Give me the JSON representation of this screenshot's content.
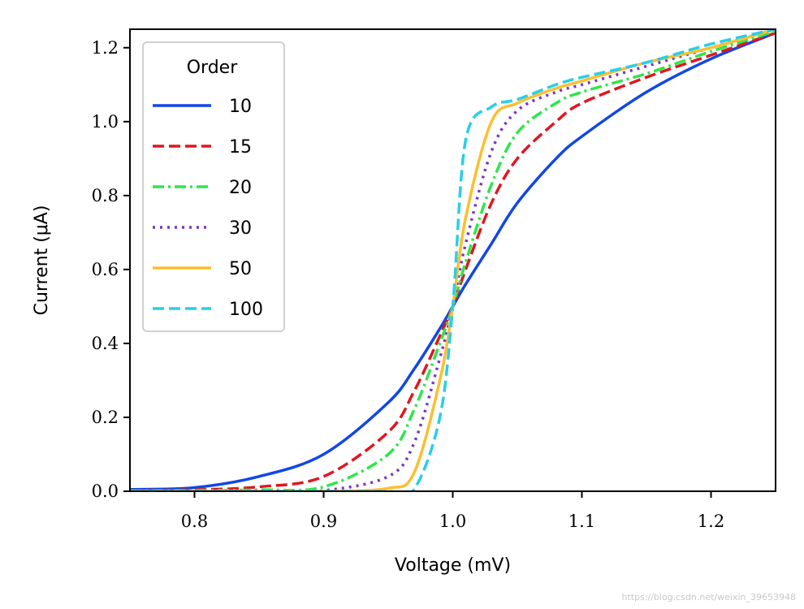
{
  "chart_data": {
    "type": "line",
    "title": "",
    "xlabel": "Voltage (mV)",
    "ylabel": "Current (μA)",
    "xlim": [
      0.75,
      1.25
    ],
    "ylim": [
      0.0,
      1.25
    ],
    "xticks": [
      0.8,
      0.9,
      1.0,
      1.1,
      1.2
    ],
    "xtick_labels": [
      "0.8",
      "0.9",
      "1.0",
      "1.1",
      "1.2"
    ],
    "yticks": [
      0.0,
      0.2,
      0.4,
      0.6,
      0.8,
      1.0,
      1.2
    ],
    "ytick_labels": [
      "0.0",
      "0.2",
      "0.4",
      "0.6",
      "0.8",
      "1.0",
      "1.2"
    ],
    "grid": false,
    "legend": {
      "title": "Order",
      "placement": "upper-left"
    },
    "x": [
      0.75,
      0.8,
      0.85,
      0.9,
      0.95,
      0.97,
      0.99,
      1.0,
      1.01,
      1.03,
      1.05,
      1.08,
      1.1,
      1.15,
      1.2,
      1.25
    ],
    "series": [
      {
        "name": "10",
        "color": "#1147e8",
        "dash": "solid",
        "values": [
          0.005,
          0.01,
          0.04,
          0.1,
          0.24,
          0.33,
          0.44,
          0.5,
          0.56,
          0.67,
          0.78,
          0.9,
          0.96,
          1.08,
          1.17,
          1.24
        ]
      },
      {
        "name": "15",
        "color": "#e11620",
        "dash": "dashed",
        "values": [
          0.002,
          0.004,
          0.012,
          0.04,
          0.16,
          0.27,
          0.42,
          0.5,
          0.6,
          0.78,
          0.9,
          1.0,
          1.05,
          1.12,
          1.18,
          1.24
        ]
      },
      {
        "name": "20",
        "color": "#2ee64a",
        "dash": "dashdot",
        "values": [
          0.001,
          0.002,
          0.004,
          0.012,
          0.1,
          0.22,
          0.4,
          0.5,
          0.62,
          0.83,
          0.97,
          1.05,
          1.08,
          1.13,
          1.19,
          1.245
        ]
      },
      {
        "name": "30",
        "color": "#7b33c8",
        "dash": "dotted",
        "values": [
          0.0,
          0.0,
          0.001,
          0.002,
          0.04,
          0.13,
          0.36,
          0.5,
          0.67,
          0.92,
          1.03,
          1.08,
          1.1,
          1.15,
          1.2,
          1.25
        ]
      },
      {
        "name": "50",
        "color": "#fbbf2f",
        "dash": "solid",
        "values": [
          0.0,
          0.0,
          0.0,
          0.0,
          0.008,
          0.05,
          0.3,
          0.5,
          0.74,
          1.0,
          1.05,
          1.09,
          1.11,
          1.16,
          1.2,
          1.25
        ]
      },
      {
        "name": "100",
        "color": "#27cfe8",
        "dash": "dashed",
        "values": [
          0.0,
          0.0,
          0.0,
          0.0,
          0.0,
          0.005,
          0.2,
          0.5,
          0.95,
          1.04,
          1.06,
          1.1,
          1.12,
          1.16,
          1.21,
          1.25
        ]
      }
    ]
  },
  "watermark": "https://blog.csdn.net/weixin_39653948"
}
